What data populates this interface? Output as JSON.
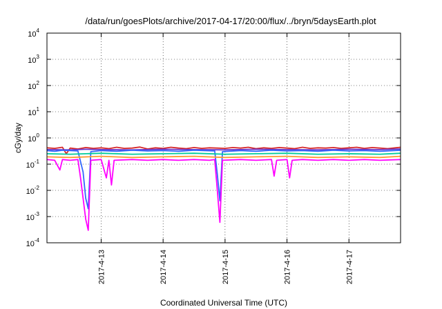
{
  "chart_data": {
    "type": "line",
    "title": "/data/run/goesPlots/archive/2017-04-17/20:00/flux/../bryn/5daysEarth.plot",
    "xlabel": "Coordinated Universal Time (UTC)",
    "ylabel": "cGy/day",
    "y_scale": "log",
    "ylim": [
      0.0001,
      10000
    ],
    "y_ticks": [
      {
        "value": 0.0001,
        "base": "10",
        "exp": "-4"
      },
      {
        "value": 0.001,
        "base": "10",
        "exp": "-3"
      },
      {
        "value": 0.01,
        "base": "10",
        "exp": "-2"
      },
      {
        "value": 0.1,
        "base": "10",
        "exp": "-1"
      },
      {
        "value": 1,
        "base": "10",
        "exp": "0"
      },
      {
        "value": 10,
        "base": "10",
        "exp": "1"
      },
      {
        "value": 100,
        "base": "10",
        "exp": "2"
      },
      {
        "value": 1000,
        "base": "10",
        "exp": "3"
      },
      {
        "value": 10000,
        "base": "10",
        "exp": "4"
      }
    ],
    "xlim": [
      "2017-04-12T03:00",
      "2017-04-17T20:00"
    ],
    "x_ticks": [
      {
        "value": "2017-04-13T00:00",
        "label": "2017-4-13"
      },
      {
        "value": "2017-04-14T00:00",
        "label": "2017-4-14"
      },
      {
        "value": "2017-04-15T00:00",
        "label": "2017-4-15"
      },
      {
        "value": "2017-04-16T00:00",
        "label": "2017-4-16"
      },
      {
        "value": "2017-04-17T00:00",
        "label": "2017-4-17"
      }
    ],
    "grid": true,
    "legend": "none",
    "series": [
      {
        "color": "#d62728",
        "values": [
          [
            "2017-04-12T03:00",
            0.42
          ],
          [
            "2017-04-12T06:00",
            0.4
          ],
          [
            "2017-04-12T09:00",
            0.44
          ],
          [
            "2017-04-12T10:30",
            0.25
          ],
          [
            "2017-04-12T12:00",
            0.41
          ],
          [
            "2017-04-12T15:00",
            0.38
          ],
          [
            "2017-04-12T18:00",
            0.43
          ],
          [
            "2017-04-12T21:00",
            0.4
          ],
          [
            "2017-04-13T00:00",
            0.42
          ],
          [
            "2017-04-13T03:00",
            0.39
          ],
          [
            "2017-04-13T06:00",
            0.44
          ],
          [
            "2017-04-13T09:00",
            0.4
          ],
          [
            "2017-04-13T12:00",
            0.41
          ],
          [
            "2017-04-13T15:00",
            0.45
          ],
          [
            "2017-04-13T18:00",
            0.38
          ],
          [
            "2017-04-13T21:00",
            0.42
          ],
          [
            "2017-04-14T00:00",
            0.4
          ],
          [
            "2017-04-14T03:00",
            0.44
          ],
          [
            "2017-04-14T06:00",
            0.41
          ],
          [
            "2017-04-14T09:00",
            0.39
          ],
          [
            "2017-04-14T12:00",
            0.43
          ],
          [
            "2017-04-14T15:00",
            0.4
          ],
          [
            "2017-04-14T18:00",
            0.42
          ],
          [
            "2017-04-14T21:00",
            0.41
          ],
          [
            "2017-04-15T00:00",
            0.4
          ],
          [
            "2017-04-15T03:00",
            0.43
          ],
          [
            "2017-04-15T06:00",
            0.41
          ],
          [
            "2017-04-15T09:00",
            0.44
          ],
          [
            "2017-04-15T12:00",
            0.39
          ],
          [
            "2017-04-15T15:00",
            0.42
          ],
          [
            "2017-04-15T18:00",
            0.4
          ],
          [
            "2017-04-15T21:00",
            0.43
          ],
          [
            "2017-04-16T00:00",
            0.41
          ],
          [
            "2017-04-16T03:00",
            0.39
          ],
          [
            "2017-04-16T06:00",
            0.44
          ],
          [
            "2017-04-16T09:00",
            0.4
          ],
          [
            "2017-04-16T12:00",
            0.42
          ],
          [
            "2017-04-16T15:00",
            0.41
          ],
          [
            "2017-04-16T18:00",
            0.43
          ],
          [
            "2017-04-16T21:00",
            0.4
          ],
          [
            "2017-04-17T00:00",
            0.42
          ],
          [
            "2017-04-17T03:00",
            0.44
          ],
          [
            "2017-04-17T06:00",
            0.4
          ],
          [
            "2017-04-17T09:00",
            0.43
          ],
          [
            "2017-04-17T12:00",
            0.41
          ],
          [
            "2017-04-17T15:00",
            0.39
          ],
          [
            "2017-04-17T18:00",
            0.42
          ],
          [
            "2017-04-17T20:00",
            0.44
          ]
        ]
      },
      {
        "color": "#6633cc",
        "values": [
          [
            "2017-04-12T03:00",
            0.36
          ],
          [
            "2017-04-12T12:00",
            0.35
          ],
          [
            "2017-04-12T18:00",
            0.37
          ],
          [
            "2017-04-13T00:00",
            0.36
          ],
          [
            "2017-04-13T12:00",
            0.35
          ],
          [
            "2017-04-14T00:00",
            0.37
          ],
          [
            "2017-04-14T12:00",
            0.36
          ],
          [
            "2017-04-15T00:00",
            0.35
          ],
          [
            "2017-04-15T12:00",
            0.37
          ],
          [
            "2017-04-16T00:00",
            0.36
          ],
          [
            "2017-04-16T12:00",
            0.35
          ],
          [
            "2017-04-17T00:00",
            0.37
          ],
          [
            "2017-04-17T12:00",
            0.36
          ],
          [
            "2017-04-17T20:00",
            0.38
          ]
        ]
      },
      {
        "color": "#3366ff",
        "values": [
          [
            "2017-04-12T03:00",
            0.33
          ],
          [
            "2017-04-12T06:00",
            0.31
          ],
          [
            "2017-04-12T09:00",
            0.34
          ],
          [
            "2017-04-12T15:00",
            0.32
          ],
          [
            "2017-04-12T17:00",
            0.05
          ],
          [
            "2017-04-12T18:00",
            0.005
          ],
          [
            "2017-04-12T19:00",
            0.002
          ],
          [
            "2017-04-12T20:00",
            0.3
          ],
          [
            "2017-04-13T00:00",
            0.33
          ],
          [
            "2017-04-13T06:00",
            0.31
          ],
          [
            "2017-04-13T12:00",
            0.34
          ],
          [
            "2017-04-13T18:00",
            0.32
          ],
          [
            "2017-04-14T00:00",
            0.33
          ],
          [
            "2017-04-14T06:00",
            0.31
          ],
          [
            "2017-04-14T12:00",
            0.34
          ],
          [
            "2017-04-14T20:00",
            0.32
          ],
          [
            "2017-04-14T21:00",
            0.04
          ],
          [
            "2017-04-14T22:00",
            0.004
          ],
          [
            "2017-04-14T23:00",
            0.3
          ],
          [
            "2017-04-15T06:00",
            0.33
          ],
          [
            "2017-04-15T12:00",
            0.31
          ],
          [
            "2017-04-15T18:00",
            0.34
          ],
          [
            "2017-04-16T00:00",
            0.32
          ],
          [
            "2017-04-16T06:00",
            0.33
          ],
          [
            "2017-04-16T12:00",
            0.31
          ],
          [
            "2017-04-16T18:00",
            0.34
          ],
          [
            "2017-04-17T00:00",
            0.32
          ],
          [
            "2017-04-17T06:00",
            0.33
          ],
          [
            "2017-04-17T12:00",
            0.31
          ],
          [
            "2017-04-17T20:00",
            0.34
          ]
        ]
      },
      {
        "color": "#00cc99",
        "values": [
          [
            "2017-04-12T03:00",
            0.25
          ],
          [
            "2017-04-12T12:00",
            0.24
          ],
          [
            "2017-04-13T00:00",
            0.26
          ],
          [
            "2017-04-13T12:00",
            0.24
          ],
          [
            "2017-04-14T00:00",
            0.25
          ],
          [
            "2017-04-14T12:00",
            0.26
          ],
          [
            "2017-04-15T00:00",
            0.24
          ],
          [
            "2017-04-15T12:00",
            0.25
          ],
          [
            "2017-04-16T00:00",
            0.26
          ],
          [
            "2017-04-16T12:00",
            0.24
          ],
          [
            "2017-04-17T00:00",
            0.25
          ],
          [
            "2017-04-17T12:00",
            0.24
          ],
          [
            "2017-04-17T20:00",
            0.26
          ]
        ]
      },
      {
        "color": "#ff9933",
        "values": [
          [
            "2017-04-12T03:00",
            0.19
          ],
          [
            "2017-04-12T12:00",
            0.18
          ],
          [
            "2017-04-13T00:00",
            0.2
          ],
          [
            "2017-04-13T12:00",
            0.18
          ],
          [
            "2017-04-14T00:00",
            0.19
          ],
          [
            "2017-04-14T12:00",
            0.2
          ],
          [
            "2017-04-15T00:00",
            0.18
          ],
          [
            "2017-04-15T12:00",
            0.19
          ],
          [
            "2017-04-16T00:00",
            0.2
          ],
          [
            "2017-04-16T12:00",
            0.18
          ],
          [
            "2017-04-17T00:00",
            0.19
          ],
          [
            "2017-04-17T12:00",
            0.18
          ],
          [
            "2017-04-17T20:00",
            0.2
          ]
        ]
      },
      {
        "color": "#ff00ff",
        "values": [
          [
            "2017-04-12T03:00",
            0.15
          ],
          [
            "2017-04-12T06:00",
            0.14
          ],
          [
            "2017-04-12T08:00",
            0.06
          ],
          [
            "2017-04-12T09:00",
            0.15
          ],
          [
            "2017-04-12T12:00",
            0.14
          ],
          [
            "2017-04-12T15:00",
            0.15
          ],
          [
            "2017-04-12T16:00",
            0.03
          ],
          [
            "2017-04-12T17:00",
            0.005
          ],
          [
            "2017-04-12T18:00",
            0.0008
          ],
          [
            "2017-04-12T19:00",
            0.0003
          ],
          [
            "2017-04-12T20:00",
            0.14
          ],
          [
            "2017-04-13T00:00",
            0.15
          ],
          [
            "2017-04-13T02:00",
            0.03
          ],
          [
            "2017-04-13T03:00",
            0.14
          ],
          [
            "2017-04-13T04:00",
            0.016
          ],
          [
            "2017-04-13T05:00",
            0.14
          ],
          [
            "2017-04-13T12:00",
            0.15
          ],
          [
            "2017-04-13T18:00",
            0.14
          ],
          [
            "2017-04-14T00:00",
            0.15
          ],
          [
            "2017-04-14T06:00",
            0.14
          ],
          [
            "2017-04-14T12:00",
            0.15
          ],
          [
            "2017-04-14T18:00",
            0.14
          ],
          [
            "2017-04-14T20:00",
            0.15
          ],
          [
            "2017-04-14T21:00",
            0.01
          ],
          [
            "2017-04-14T22:00",
            0.0006
          ],
          [
            "2017-04-14T23:00",
            0.14
          ],
          [
            "2017-04-15T06:00",
            0.15
          ],
          [
            "2017-04-15T12:00",
            0.14
          ],
          [
            "2017-04-15T18:00",
            0.15
          ],
          [
            "2017-04-15T19:00",
            0.035
          ],
          [
            "2017-04-15T20:00",
            0.14
          ],
          [
            "2017-04-16T00:00",
            0.15
          ],
          [
            "2017-04-16T01:00",
            0.03
          ],
          [
            "2017-04-16T02:00",
            0.14
          ],
          [
            "2017-04-16T06:00",
            0.15
          ],
          [
            "2017-04-16T12:00",
            0.14
          ],
          [
            "2017-04-16T18:00",
            0.15
          ],
          [
            "2017-04-17T00:00",
            0.14
          ],
          [
            "2017-04-17T06:00",
            0.15
          ],
          [
            "2017-04-17T12:00",
            0.14
          ],
          [
            "2017-04-17T20:00",
            0.15
          ]
        ]
      }
    ]
  }
}
